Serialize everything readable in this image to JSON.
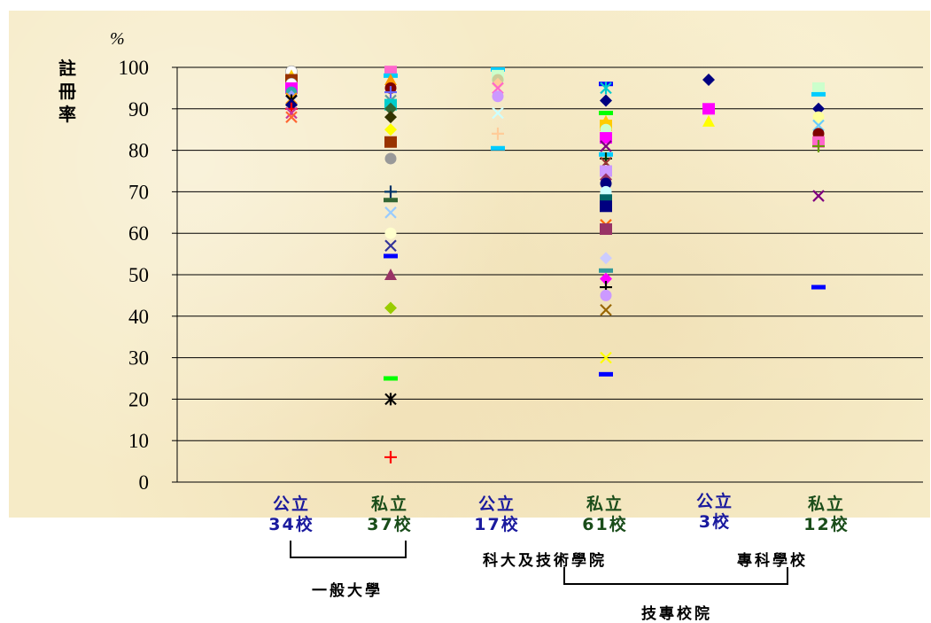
{
  "chart_data": {
    "type": "scatter",
    "ylabel": "註冊率",
    "yunit": "%",
    "ylim": [
      0,
      100
    ],
    "yticks": [
      0,
      10,
      20,
      30,
      40,
      50,
      60,
      70,
      80,
      90,
      100
    ],
    "grid": true,
    "categories": [
      {
        "line1": "公立",
        "line2": "34校",
        "color": "#1a1a9e"
      },
      {
        "line1": "私立",
        "line2": "37校",
        "color": "#1a4d1a"
      },
      {
        "line1": "公立",
        "line2": "17校",
        "color": "#1a1a9e"
      },
      {
        "line1": "私立",
        "line2": "61校",
        "color": "#1a4d1a"
      },
      {
        "line1": "公立",
        "line2": "3校",
        "color": "#1a1a9e"
      },
      {
        "line1": "私立",
        "line2": "12校",
        "color": "#1a4d1a"
      }
    ],
    "groups": {
      "general_university": "一般大學",
      "tech_university": "科大及技術學院",
      "junior_college": "專科學校",
      "tech_vocational": "技專校院"
    },
    "points": [
      {
        "c": 0,
        "y": 99,
        "m": "circle",
        "color": "#ffffff"
      },
      {
        "c": 0,
        "y": 98,
        "m": "triangle",
        "color": "#ffcc00"
      },
      {
        "c": 0,
        "y": 97,
        "m": "square",
        "color": "#993300"
      },
      {
        "c": 0,
        "y": 96,
        "m": "circle",
        "color": "#ffffff"
      },
      {
        "c": 0,
        "y": 95,
        "m": "square",
        "color": "#ff00ff"
      },
      {
        "c": 0,
        "y": 94,
        "m": "circle",
        "color": "#33aaaa"
      },
      {
        "c": 0,
        "y": 93,
        "m": "diamond",
        "color": "#9999ff"
      },
      {
        "c": 0,
        "y": 92.5,
        "m": "x",
        "color": "#ff9900"
      },
      {
        "c": 0,
        "y": 92,
        "m": "star",
        "color": "#000000"
      },
      {
        "c": 0,
        "y": 91,
        "m": "diamond",
        "color": "#000080"
      },
      {
        "c": 0,
        "y": 90,
        "m": "plus",
        "color": "#ff0000"
      },
      {
        "c": 0,
        "y": 89,
        "m": "x",
        "color": "#cc3399"
      },
      {
        "c": 0,
        "y": 88,
        "m": "x",
        "color": "#ff6633"
      },
      {
        "c": 1,
        "y": 99,
        "m": "square",
        "color": "#ff66cc"
      },
      {
        "c": 1,
        "y": 98,
        "m": "dash",
        "color": "#00ccff"
      },
      {
        "c": 1,
        "y": 97,
        "m": "triangle",
        "color": "#ff9900"
      },
      {
        "c": 1,
        "y": 95,
        "m": "circle",
        "color": "#800000"
      },
      {
        "c": 1,
        "y": 94,
        "m": "plus",
        "color": "#6666ff"
      },
      {
        "c": 1,
        "y": 92,
        "m": "x",
        "color": "#669999"
      },
      {
        "c": 1,
        "y": 91,
        "m": "square",
        "color": "#00cccc"
      },
      {
        "c": 1,
        "y": 90,
        "m": "diamond",
        "color": "#336633"
      },
      {
        "c": 1,
        "y": 88,
        "m": "diamond",
        "color": "#333300"
      },
      {
        "c": 1,
        "y": 85,
        "m": "diamond",
        "color": "#ffff00"
      },
      {
        "c": 1,
        "y": 82,
        "m": "square",
        "color": "#993300"
      },
      {
        "c": 1,
        "y": 78,
        "m": "circle",
        "color": "#999999"
      },
      {
        "c": 1,
        "y": 70,
        "m": "plus",
        "color": "#003366"
      },
      {
        "c": 1,
        "y": 68,
        "m": "dash",
        "color": "#336633"
      },
      {
        "c": 1,
        "y": 65,
        "m": "x",
        "color": "#99ccff"
      },
      {
        "c": 1,
        "y": 60,
        "m": "circle",
        "color": "#ffffcc"
      },
      {
        "c": 1,
        "y": 57,
        "m": "x",
        "color": "#333399"
      },
      {
        "c": 1,
        "y": 54.5,
        "m": "dash",
        "color": "#0000ff"
      },
      {
        "c": 1,
        "y": 50,
        "m": "triangle",
        "color": "#993366"
      },
      {
        "c": 1,
        "y": 42,
        "m": "diamond",
        "color": "#99cc00"
      },
      {
        "c": 1,
        "y": 25,
        "m": "dash",
        "color": "#00ff00"
      },
      {
        "c": 1,
        "y": 20,
        "m": "star",
        "color": "#000000"
      },
      {
        "c": 1,
        "y": 6,
        "m": "plus",
        "color": "#ff0000"
      },
      {
        "c": 2,
        "y": 99.5,
        "m": "dash",
        "color": "#00ccff"
      },
      {
        "c": 2,
        "y": 98,
        "m": "square",
        "color": "#ccffcc"
      },
      {
        "c": 2,
        "y": 97,
        "m": "circle",
        "color": "#cccc99"
      },
      {
        "c": 2,
        "y": 96,
        "m": "diamond",
        "color": "#ffcc99"
      },
      {
        "c": 2,
        "y": 95,
        "m": "x",
        "color": "#ff66cc"
      },
      {
        "c": 2,
        "y": 93,
        "m": "circle",
        "color": "#cc99ff"
      },
      {
        "c": 2,
        "y": 89,
        "m": "x",
        "color": "#ccffff"
      },
      {
        "c": 2,
        "y": 84,
        "m": "plus",
        "color": "#ffcc99"
      },
      {
        "c": 2,
        "y": 80.5,
        "m": "dash",
        "color": "#00ccff"
      },
      {
        "c": 3,
        "y": 96,
        "m": "dash",
        "color": "#0000ff"
      },
      {
        "c": 3,
        "y": 95,
        "m": "star",
        "color": "#00cccc"
      },
      {
        "c": 3,
        "y": 92,
        "m": "diamond",
        "color": "#000080"
      },
      {
        "c": 3,
        "y": 89,
        "m": "dash",
        "color": "#00ff00"
      },
      {
        "c": 3,
        "y": 87,
        "m": "triangle",
        "color": "#ffcc00"
      },
      {
        "c": 3,
        "y": 86,
        "m": "square",
        "color": "#ffcc00"
      },
      {
        "c": 3,
        "y": 85,
        "m": "circle",
        "color": "#ccffcc"
      },
      {
        "c": 3,
        "y": 83,
        "m": "square",
        "color": "#ff00ff"
      },
      {
        "c": 3,
        "y": 81,
        "m": "x",
        "color": "#800080"
      },
      {
        "c": 3,
        "y": 79,
        "m": "dash",
        "color": "#00ccff"
      },
      {
        "c": 3,
        "y": 78,
        "m": "plus",
        "color": "#003300"
      },
      {
        "c": 3,
        "y": 77,
        "m": "x",
        "color": "#993333"
      },
      {
        "c": 3,
        "y": 75,
        "m": "square",
        "color": "#cc99ff"
      },
      {
        "c": 3,
        "y": 73,
        "m": "diamond",
        "color": "#993366"
      },
      {
        "c": 3,
        "y": 72,
        "m": "circle",
        "color": "#000080"
      },
      {
        "c": 3,
        "y": 70,
        "m": "circle",
        "color": "#ccffff"
      },
      {
        "c": 3,
        "y": 68,
        "m": "square",
        "color": "#006666"
      },
      {
        "c": 3,
        "y": 66.5,
        "m": "square",
        "color": "#000080"
      },
      {
        "c": 3,
        "y": 62,
        "m": "x",
        "color": "#ff6600"
      },
      {
        "c": 3,
        "y": 61,
        "m": "square",
        "color": "#993366"
      },
      {
        "c": 3,
        "y": 54,
        "m": "diamond",
        "color": "#ccccff"
      },
      {
        "c": 3,
        "y": 51,
        "m": "dash",
        "color": "#339999"
      },
      {
        "c": 3,
        "y": 49,
        "m": "diamond",
        "color": "#ff00ff"
      },
      {
        "c": 3,
        "y": 47,
        "m": "plus",
        "color": "#000000"
      },
      {
        "c": 3,
        "y": 45,
        "m": "circle",
        "color": "#cc99ff"
      },
      {
        "c": 3,
        "y": 41.5,
        "m": "x",
        "color": "#996600"
      },
      {
        "c": 3,
        "y": 30,
        "m": "x",
        "color": "#ffff00"
      },
      {
        "c": 3,
        "y": 26,
        "m": "dash",
        "color": "#0000ff"
      },
      {
        "c": 4,
        "y": 97,
        "m": "diamond",
        "color": "#000080"
      },
      {
        "c": 4,
        "y": 90,
        "m": "square",
        "color": "#ff00ff"
      },
      {
        "c": 4,
        "y": 87,
        "m": "triangle",
        "color": "#ffff00"
      },
      {
        "c": 5,
        "y": 95,
        "m": "square",
        "color": "#ccffcc"
      },
      {
        "c": 5,
        "y": 93.5,
        "m": "dash",
        "color": "#00ccff"
      },
      {
        "c": 5,
        "y": 90,
        "m": "diamond",
        "color": "#000080"
      },
      {
        "c": 5,
        "y": 88,
        "m": "circle",
        "color": "#ffff99"
      },
      {
        "c": 5,
        "y": 86,
        "m": "x",
        "color": "#66ccff"
      },
      {
        "c": 5,
        "y": 84,
        "m": "circle",
        "color": "#800000"
      },
      {
        "c": 5,
        "y": 82,
        "m": "square",
        "color": "#ff66cc"
      },
      {
        "c": 5,
        "y": 81,
        "m": "plus",
        "color": "#669900"
      },
      {
        "c": 5,
        "y": 69,
        "m": "x",
        "color": "#800080"
      },
      {
        "c": 5,
        "y": 47,
        "m": "dash",
        "color": "#0000ff"
      }
    ]
  }
}
